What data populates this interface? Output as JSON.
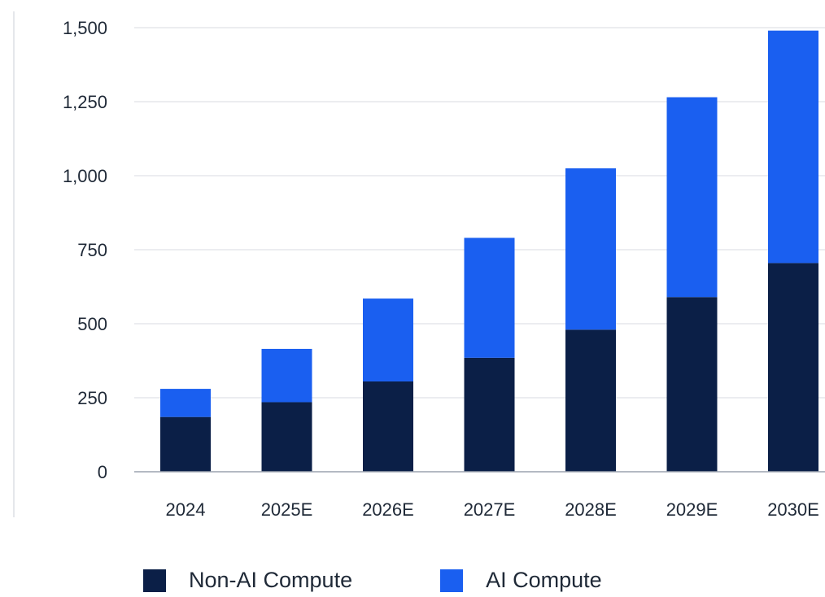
{
  "chart_data": {
    "type": "bar",
    "stacked": true,
    "categories": [
      "2024",
      "2025E",
      "2026E",
      "2027E",
      "2028E",
      "2029E",
      "2030E"
    ],
    "series": [
      {
        "name": "Non-AI Compute",
        "values": [
          185,
          235,
          305,
          385,
          480,
          590,
          705
        ],
        "color": "#0b1f47"
      },
      {
        "name": "AI Compute",
        "values": [
          95,
          180,
          280,
          405,
          545,
          675,
          785
        ],
        "color": "#1a5ff0"
      }
    ],
    "y_ticks": [
      "0",
      "250",
      "500",
      "750",
      "1,000",
      "1,250",
      "1,500"
    ],
    "ylim": [
      0,
      1500
    ],
    "grid": true,
    "legend_position": "bottom"
  },
  "legend": {
    "items": [
      {
        "label": "Non-AI Compute",
        "color": "#0b1f47"
      },
      {
        "label": "AI Compute",
        "color": "#1a5ff0"
      }
    ]
  }
}
